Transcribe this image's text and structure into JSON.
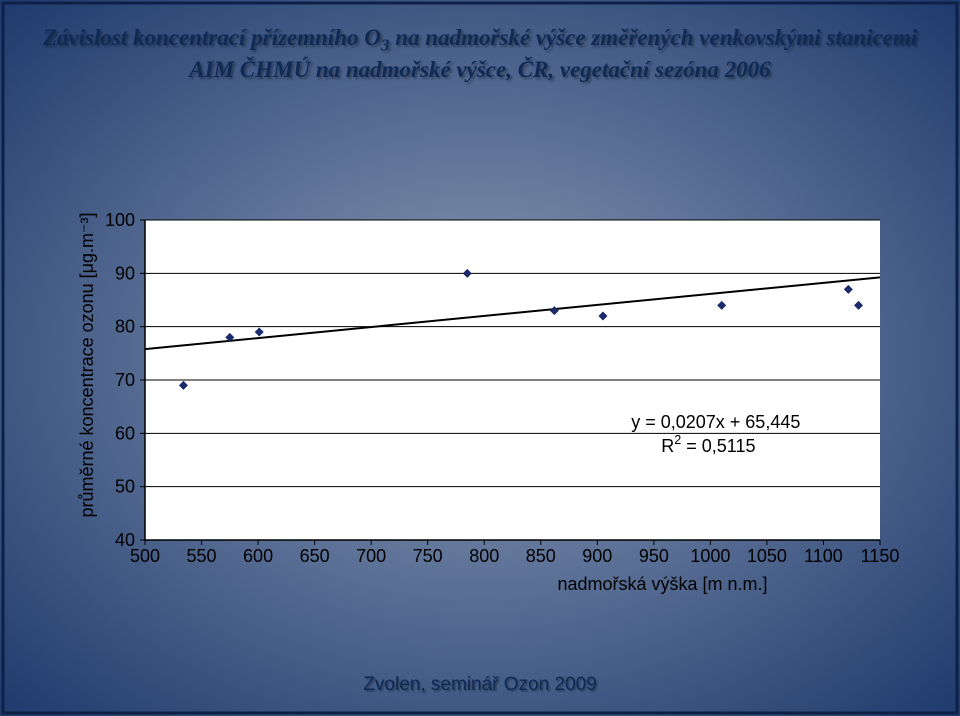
{
  "background": {
    "outer_color": "#1f3a6d",
    "inner_color": "#8d9db7",
    "border_line_color": "#0d2147"
  },
  "title": {
    "color": "#0f2a55",
    "line1_pre": "Závislost koncentrací přízemního O",
    "line1_sub": "3",
    "line1_post": " na nadmořské výšce změřených venkovskými stanicemi",
    "line2": "AIM ČHMÚ na nadmořské výšce, ČR, vegetační sezóna 2006"
  },
  "footer": {
    "text": "Zvolen, seminář Ozon 2009",
    "color": "#0e2a56"
  },
  "chart": {
    "type": "scatter",
    "plot_background": "#ffffff",
    "gridline_color": "#000000",
    "axis_color": "#000000",
    "marker_color": "#1a2a6b",
    "marker_size": 9,
    "line_color": "#000000",
    "line_width": 2,
    "trend_line_width": 2,
    "xlim": [
      500,
      1150
    ],
    "ylim": [
      40,
      100
    ],
    "xticks": [
      500,
      550,
      600,
      650,
      700,
      750,
      800,
      850,
      900,
      950,
      1000,
      1050,
      1100,
      1150
    ],
    "yticks": [
      40,
      50,
      60,
      70,
      80,
      90,
      100
    ],
    "gridlines_y_only": true,
    "xlabel": "nadmořská výška [m n.m.]",
    "ylabel": "průměrné koncentrace ozonu [μg.m⁻³]",
    "tick_fontsize": 18,
    "label_fontsize": 18,
    "equation_line1": "y = 0,0207x + 65,445",
    "equation_line2_pre": "R",
    "equation_line2_sup": "2",
    "equation_line2_post": " = 0,5115",
    "equation_fontsize": 18,
    "trend": {
      "slope": 0.0207,
      "intercept": 65.445
    },
    "points": [
      {
        "x": 534,
        "y": 69
      },
      {
        "x": 575,
        "y": 78
      },
      {
        "x": 601,
        "y": 79
      },
      {
        "x": 785,
        "y": 90
      },
      {
        "x": 862,
        "y": 83
      },
      {
        "x": 905,
        "y": 82
      },
      {
        "x": 1010,
        "y": 84
      },
      {
        "x": 1122,
        "y": 87
      },
      {
        "x": 1131,
        "y": 84
      }
    ]
  }
}
